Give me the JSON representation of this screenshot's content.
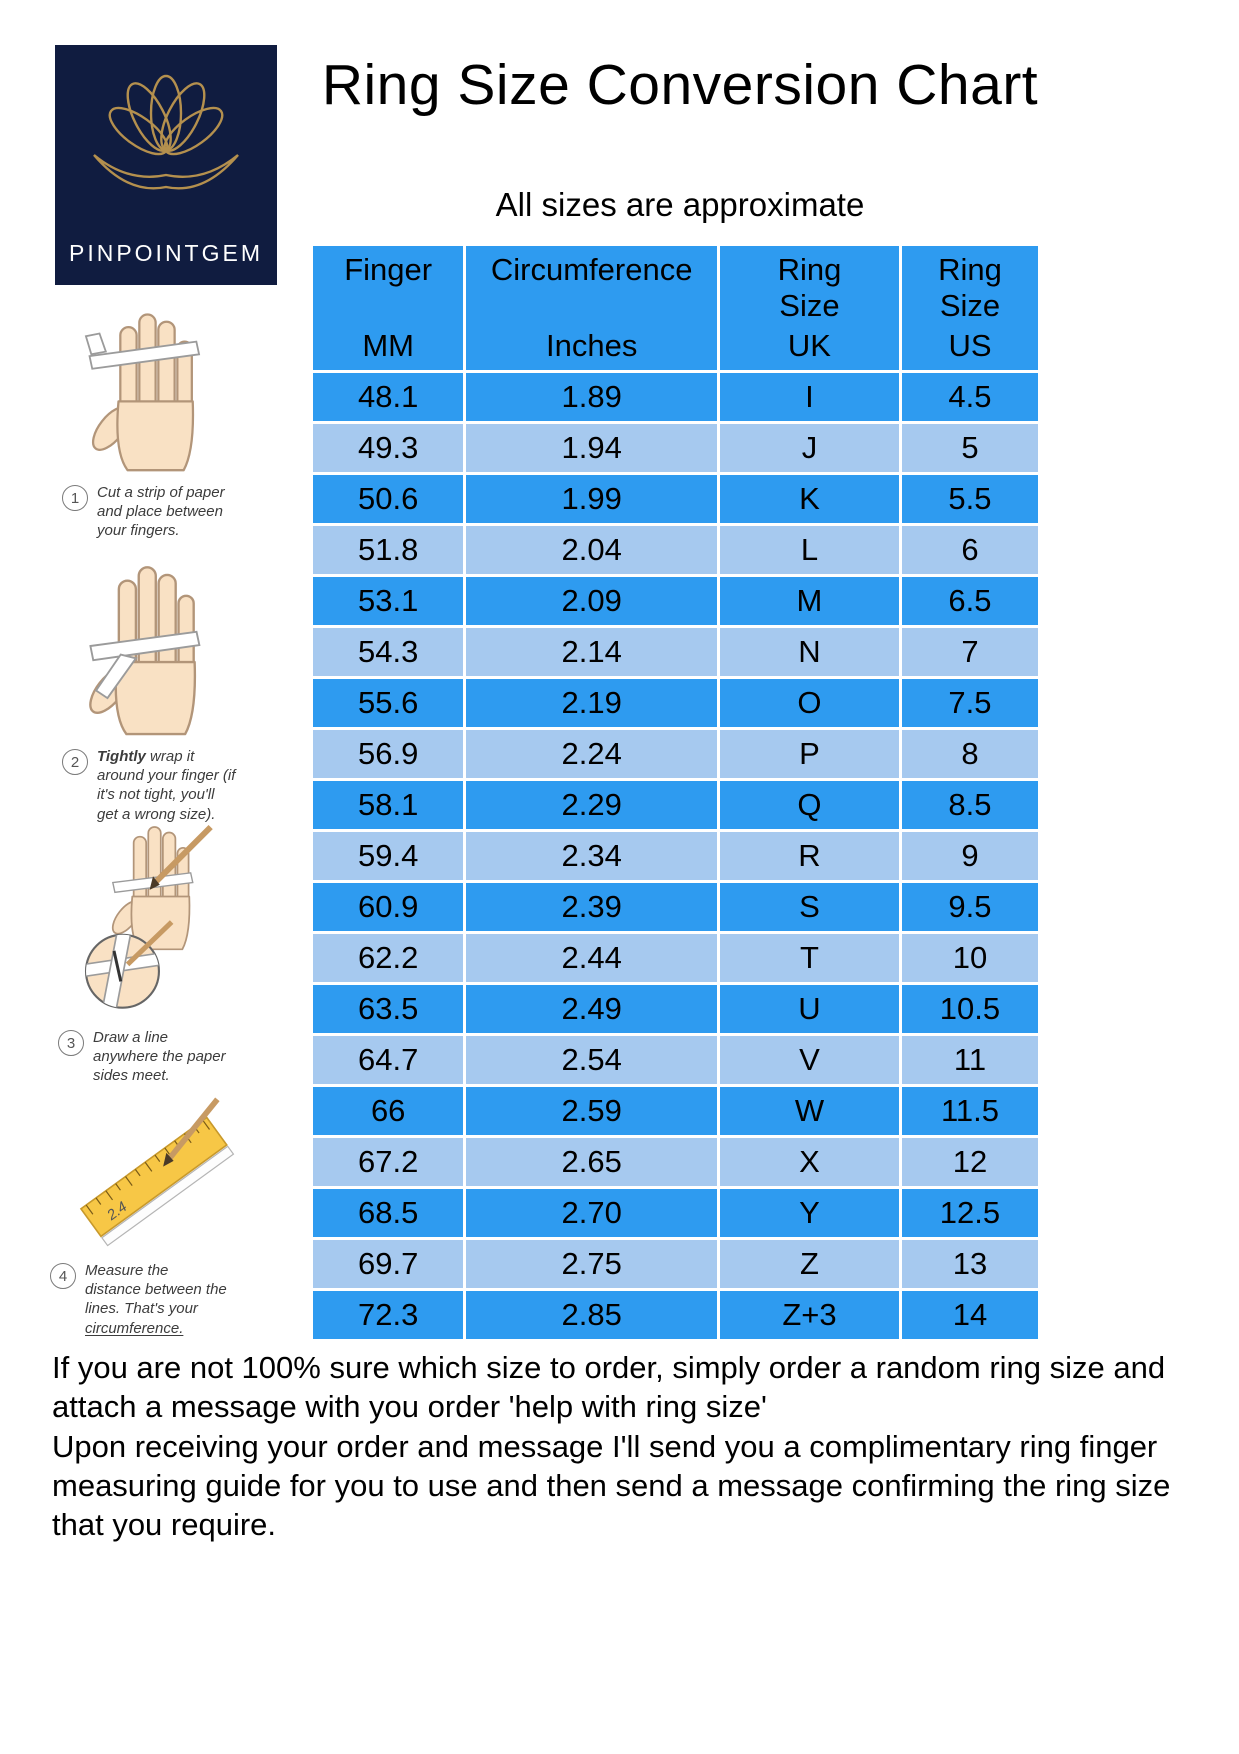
{
  "logo": {
    "text": "PINPOINTGEM"
  },
  "header": {
    "title": "Ring Size Conversion Chart",
    "subtitle": "All sizes are approximate"
  },
  "steps": [
    {
      "num": "1",
      "bold": "",
      "text": "Cut a strip of paper and place between your fingers.",
      "underline": ""
    },
    {
      "num": "2",
      "bold": "Tightly",
      "text": " wrap it around your finger (if it's not tight, you'll get a wrong size).",
      "underline": ""
    },
    {
      "num": "3",
      "bold": "",
      "text": "Draw a line anywhere the paper sides meet.",
      "underline": ""
    },
    {
      "num": "4",
      "bold": "",
      "text": "Measure the distance between the lines. That's your ",
      "underline": "circumference.",
      "ruler_label": "2.4"
    }
  ],
  "chart_data": {
    "type": "table",
    "title": "Ring Size Conversion Chart",
    "columns": [
      "Finger MM",
      "Circumference Inches",
      "Ring Size UK",
      "Ring Size US"
    ],
    "header_display": [
      {
        "top": "Finger",
        "bottom": "MM"
      },
      {
        "top": "Circumference",
        "bottom": "Inches"
      },
      {
        "top": "Ring\nSize",
        "bottom": "UK"
      },
      {
        "top": "Ring\nSize",
        "bottom": "US"
      }
    ],
    "rows": [
      [
        "48.1",
        "1.89",
        "I",
        "4.5"
      ],
      [
        "49.3",
        "1.94",
        "J",
        "5"
      ],
      [
        "50.6",
        "1.99",
        "K",
        "5.5"
      ],
      [
        "51.8",
        "2.04",
        "L",
        "6"
      ],
      [
        "53.1",
        "2.09",
        "M",
        "6.5"
      ],
      [
        "54.3",
        "2.14",
        "N",
        "7"
      ],
      [
        "55.6",
        "2.19",
        "O",
        "7.5"
      ],
      [
        "56.9",
        "2.24",
        "P",
        "8"
      ],
      [
        "58.1",
        "2.29",
        "Q",
        "8.5"
      ],
      [
        "59.4",
        "2.34",
        "R",
        "9"
      ],
      [
        "60.9",
        "2.39",
        "S",
        "9.5"
      ],
      [
        "62.2",
        "2.44",
        "T",
        "10"
      ],
      [
        "63.5",
        "2.49",
        "U",
        "10.5"
      ],
      [
        "64.7",
        "2.54",
        "V",
        "11"
      ],
      [
        "66",
        "2.59",
        "W",
        "11.5"
      ],
      [
        "67.2",
        "2.65",
        "X",
        "12"
      ],
      [
        "68.5",
        "2.70",
        "Y",
        "12.5"
      ],
      [
        "69.7",
        "2.75",
        "Z",
        "13"
      ],
      [
        "72.3",
        "2.85",
        "Z+3",
        "14"
      ]
    ]
  },
  "footer": {
    "line1": "If you are not 100% sure which size to order, simply order a random ring size and attach a message with you order 'help with ring size'",
    "line2": "Upon receiving your order and message I'll send you a complimentary ring finger measuring guide for you to use and then send a message confirming the ring size that you require."
  },
  "theme": {
    "row-dark": "#2e9bf0",
    "row-light": "#a6c9ef",
    "logo-bg": "#101c40",
    "logo-gold": "#b4904e"
  }
}
